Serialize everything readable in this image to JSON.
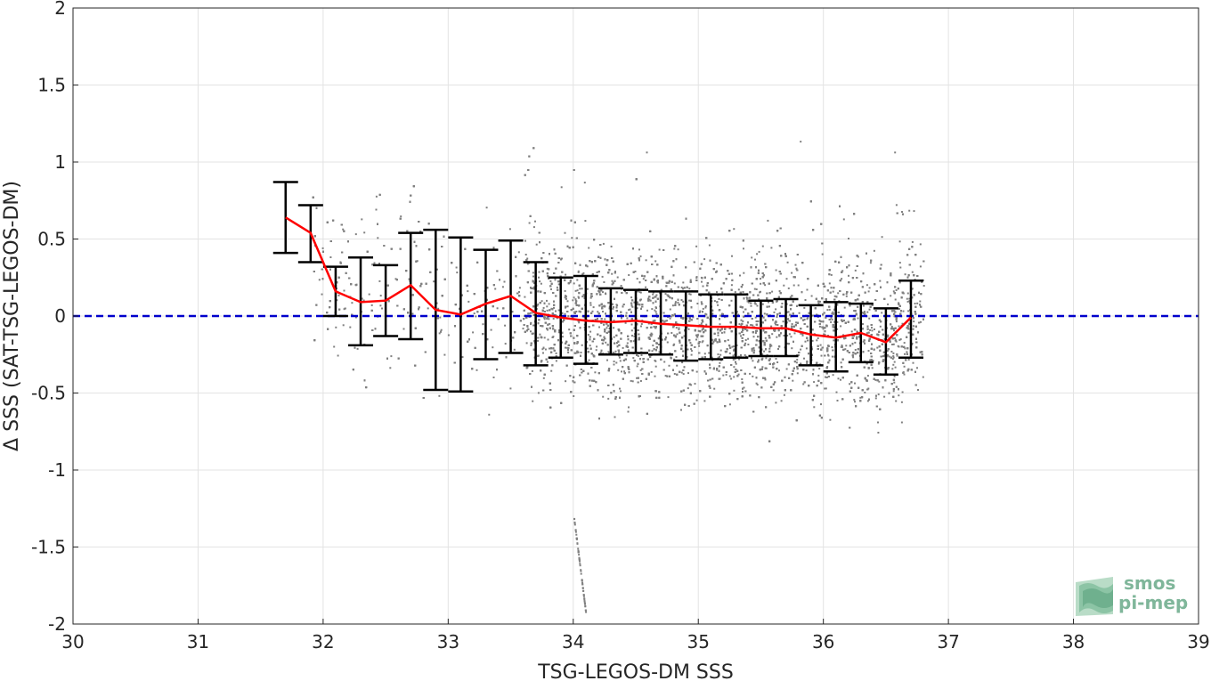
{
  "chart_data": {
    "type": "scatter",
    "xlabel": "TSG-LEGOS-DM SSS",
    "ylabel": "Δ SSS (SAT-TSG-LEGOS-DM)",
    "xlim": [
      30,
      39
    ],
    "ylim": [
      -2,
      2
    ],
    "x_ticks": [
      30,
      31,
      32,
      33,
      34,
      35,
      36,
      37,
      38,
      39
    ],
    "y_ticks": [
      -2,
      -1.5,
      -1,
      -0.5,
      0,
      0.5,
      1,
      1.5,
      2
    ],
    "x_tick_labels": [
      "30",
      "31",
      "32",
      "33",
      "34",
      "35",
      "36",
      "37",
      "38",
      "39"
    ],
    "y_tick_labels": [
      "-2",
      "-1.5",
      "-1",
      "-0.5",
      "0",
      "0.5",
      "1",
      "1.5",
      "2"
    ],
    "grid": true,
    "zero_line": {
      "y": 0,
      "color": "#0000cc",
      "style": "dashed"
    },
    "scatter_color": "#808080",
    "mean_line_color": "#ff0000",
    "errorbar_color": "#000000",
    "binned": [
      {
        "x": 31.7,
        "mean": 0.64,
        "low": 0.41,
        "high": 0.87
      },
      {
        "x": 31.9,
        "mean": 0.54,
        "low": 0.35,
        "high": 0.72
      },
      {
        "x": 32.1,
        "mean": 0.16,
        "low": 0.0,
        "high": 0.32
      },
      {
        "x": 32.3,
        "mean": 0.09,
        "low": -0.19,
        "high": 0.38
      },
      {
        "x": 32.5,
        "mean": 0.1,
        "low": -0.13,
        "high": 0.33
      },
      {
        "x": 32.7,
        "mean": 0.2,
        "low": -0.15,
        "high": 0.54
      },
      {
        "x": 32.9,
        "mean": 0.04,
        "low": -0.48,
        "high": 0.56
      },
      {
        "x": 33.1,
        "mean": 0.01,
        "low": -0.49,
        "high": 0.51
      },
      {
        "x": 33.3,
        "mean": 0.08,
        "low": -0.28,
        "high": 0.43
      },
      {
        "x": 33.5,
        "mean": 0.13,
        "low": -0.24,
        "high": 0.49
      },
      {
        "x": 33.7,
        "mean": 0.02,
        "low": -0.32,
        "high": 0.35
      },
      {
        "x": 33.9,
        "mean": -0.01,
        "low": -0.27,
        "high": 0.25
      },
      {
        "x": 34.1,
        "mean": -0.03,
        "low": -0.31,
        "high": 0.26
      },
      {
        "x": 34.3,
        "mean": -0.04,
        "low": -0.25,
        "high": 0.18
      },
      {
        "x": 34.5,
        "mean": -0.03,
        "low": -0.24,
        "high": 0.17
      },
      {
        "x": 34.7,
        "mean": -0.05,
        "low": -0.25,
        "high": 0.16
      },
      {
        "x": 34.9,
        "mean": -0.06,
        "low": -0.29,
        "high": 0.16
      },
      {
        "x": 35.1,
        "mean": -0.07,
        "low": -0.28,
        "high": 0.14
      },
      {
        "x": 35.3,
        "mean": -0.07,
        "low": -0.27,
        "high": 0.14
      },
      {
        "x": 35.5,
        "mean": -0.08,
        "low": -0.26,
        "high": 0.1
      },
      {
        "x": 35.7,
        "mean": -0.08,
        "low": -0.26,
        "high": 0.11
      },
      {
        "x": 35.9,
        "mean": -0.12,
        "low": -0.32,
        "high": 0.07
      },
      {
        "x": 36.1,
        "mean": -0.14,
        "low": -0.36,
        "high": 0.09
      },
      {
        "x": 36.3,
        "mean": -0.11,
        "low": -0.3,
        "high": 0.08
      },
      {
        "x": 36.5,
        "mean": -0.17,
        "low": -0.38,
        "high": 0.05
      },
      {
        "x": 36.7,
        "mean": -0.01,
        "low": -0.27,
        "high": 0.23
      }
    ],
    "scatter_summary": {
      "dense_x_range": [
        33.6,
        36.8
      ],
      "sparse_x_range": [
        31.7,
        33.6
      ],
      "outlier_streak": {
        "x_range": [
          34.0,
          34.1
        ],
        "y_range": [
          -1.95,
          -1.3
        ]
      }
    }
  },
  "logo": {
    "line1": "smos",
    "line2": "pi-mep"
  }
}
